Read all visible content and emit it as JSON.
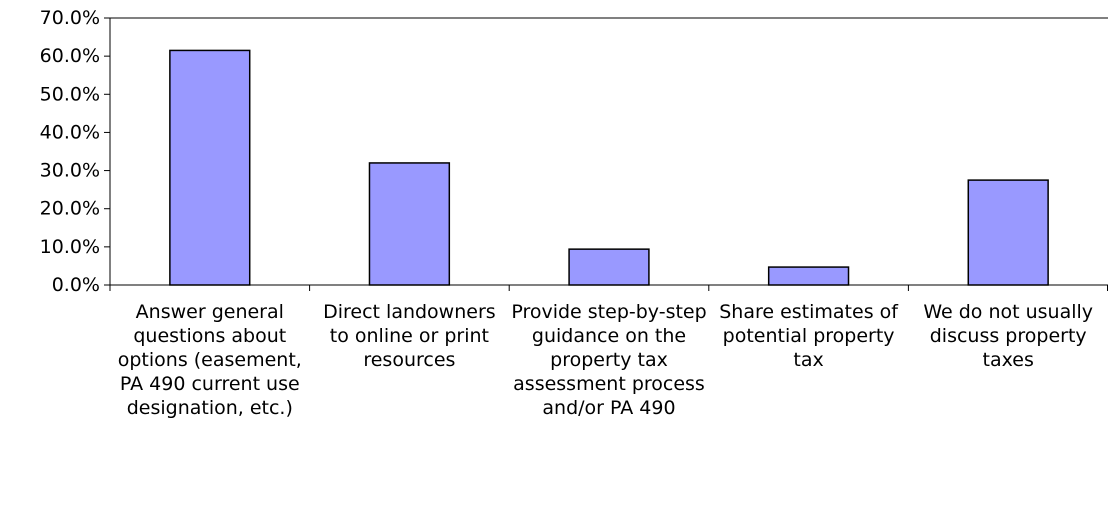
{
  "chart_data": {
    "type": "bar",
    "categories": [
      "Answer general questions about options (easement, PA 490 current use designation, etc.)",
      "Direct landowners to online or print resources",
      "Provide step-by-step guidance on the property tax assessment process and/or PA 490",
      "Share estimates of potential property tax",
      "We do not usually discuss property taxes"
    ],
    "values": [
      61.5,
      32,
      9.4,
      4.7,
      27.5
    ],
    "color": "#9999ff",
    "ylim": [
      0,
      70
    ],
    "yticks": [
      {
        "value": 0,
        "label": "0.0%"
      },
      {
        "value": 10,
        "label": "10.0%"
      },
      {
        "value": 20,
        "label": "20.0%"
      },
      {
        "value": 30,
        "label": "30.0%"
      },
      {
        "value": 40,
        "label": "40.0%"
      },
      {
        "value": 50,
        "label": "50.0%"
      },
      {
        "value": 60,
        "label": "60.0%"
      },
      {
        "value": 70,
        "label": "70.0%"
      }
    ],
    "grid": false
  }
}
